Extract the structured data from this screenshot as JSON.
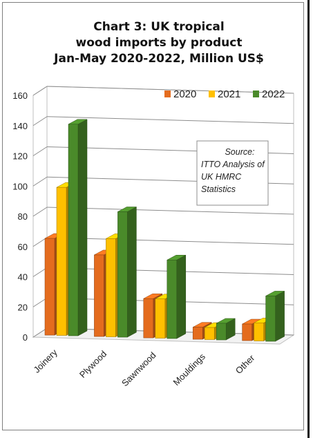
{
  "chart_data": {
    "type": "bar",
    "title_lines": [
      "Chart 3: UK tropical",
      "wood imports by product",
      "Jan-May 2020-2022, Million US$"
    ],
    "categories": [
      "Joinery",
      "Plywood",
      "Sawnwood",
      "Mouldings",
      "Other"
    ],
    "series": [
      {
        "name": "2020",
        "values": [
          64,
          54,
          26,
          8,
          11
        ],
        "color": "#e46c1e"
      },
      {
        "name": "2021",
        "values": [
          98,
          65,
          26,
          8,
          12
        ],
        "color": "#ffc000"
      },
      {
        "name": "2022",
        "values": [
          140,
          83,
          52,
          11,
          30
        ],
        "color": "#4a8a2a"
      }
    ],
    "ylim": [
      0,
      160
    ],
    "yticks": [
      0,
      20,
      40,
      60,
      80,
      100,
      120,
      140,
      160
    ],
    "grid": true,
    "legend": "top-right",
    "three_d": true,
    "annotation": [
      "Source:",
      "ITTO Analysis of",
      "UK HMRC",
      "Statistics"
    ]
  }
}
